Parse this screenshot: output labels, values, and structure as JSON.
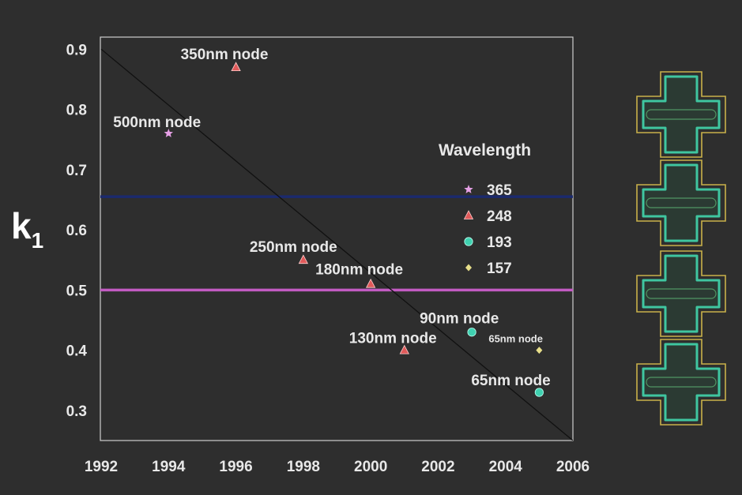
{
  "colors": {
    "background": "#2e2e2e",
    "frame": "#cfcfcf",
    "text": "#e8e8e8",
    "trend_line": "#111111",
    "line_blue": "#1b2a6e",
    "line_magenta": "#c25bc2",
    "mark_365": "#e6a0e6",
    "mark_248": "#e05a5a",
    "mark_193": "#3fd1b0",
    "mark_157": "#e8df8a",
    "cell_outline": "#c9b14a",
    "cell_fill": "#3fc6a0"
  },
  "chart_data": {
    "type": "scatter",
    "title": "",
    "ylabel": "k",
    "ylabel_subscript": "1",
    "xlabel": "",
    "xlim": [
      1992,
      2006
    ],
    "ylim": [
      0.25,
      0.92
    ],
    "xticks": [
      "1992",
      "1994",
      "1996",
      "1998",
      "2000",
      "2002",
      "2004",
      "2006"
    ],
    "yticks": [
      "0.9",
      "0.8",
      "0.7",
      "0.6",
      "0.5",
      "0.4",
      "0.3"
    ],
    "legend": {
      "title": "Wavelength",
      "position": "right",
      "entries": [
        {
          "label": "365",
          "marker": "star",
          "color": "#e6a0e6"
        },
        {
          "label": "248",
          "marker": "triangle",
          "color": "#e05a5a"
        },
        {
          "label": "193",
          "marker": "circle",
          "color": "#3fd1b0"
        },
        {
          "label": "157",
          "marker": "diamond",
          "color": "#e8df8a"
        }
      ]
    },
    "series": [
      {
        "wavelength": "365",
        "marker": "star",
        "points": [
          {
            "x": 1994,
            "y": 0.76,
            "label": "500nm node"
          }
        ]
      },
      {
        "wavelength": "248",
        "marker": "triangle",
        "points": [
          {
            "x": 1996,
            "y": 0.87,
            "label": "350nm node"
          },
          {
            "x": 1998,
            "y": 0.55,
            "label": "250nm node"
          },
          {
            "x": 2000,
            "y": 0.51,
            "label": "180nm node"
          },
          {
            "x": 2001,
            "y": 0.4,
            "label": "130nm node"
          }
        ]
      },
      {
        "wavelength": "193",
        "marker": "circle",
        "points": [
          {
            "x": 2003,
            "y": 0.43,
            "label": "90nm node"
          },
          {
            "x": 2005,
            "y": 0.33,
            "label": "65nm node"
          }
        ]
      },
      {
        "wavelength": "157",
        "marker": "diamond",
        "points": [
          {
            "x": 2005,
            "y": 0.4,
            "label": "65nm node"
          }
        ]
      }
    ],
    "trend_line": {
      "from": {
        "x": 1992,
        "y": 0.9
      },
      "to": {
        "x": 2006,
        "y": 0.25
      }
    },
    "horizontal_lines": [
      {
        "y": 0.655,
        "color": "#1b2a6e"
      },
      {
        "y": 0.5,
        "color": "#c25bc2"
      }
    ]
  }
}
